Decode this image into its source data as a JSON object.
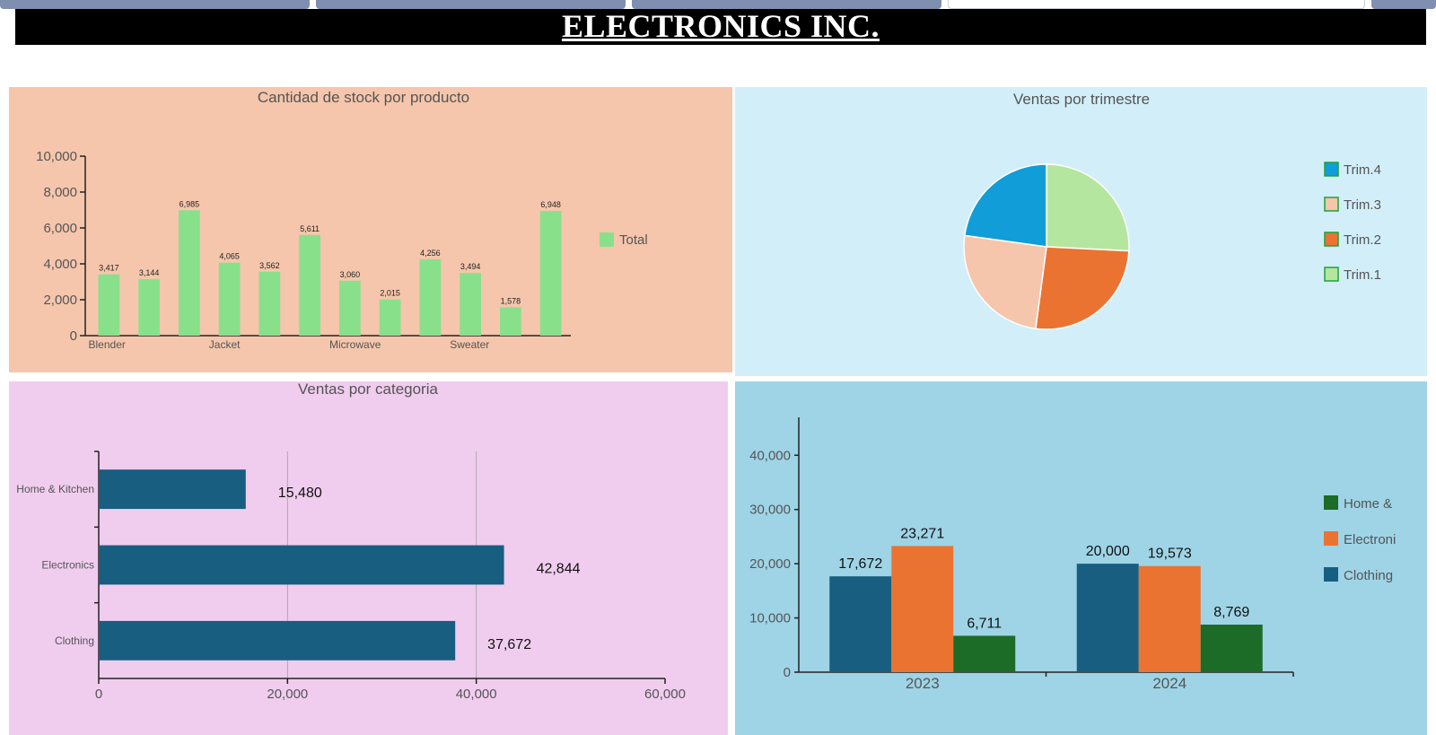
{
  "banner": {
    "title": "ELECTRONICS INC."
  },
  "colors": {
    "panel_stock": "#f5c6ac",
    "panel_quarter": "#d2eef9",
    "panel_category": "#f0cdef",
    "panel_year": "#9ed4e6",
    "bar_green": "#89e08b",
    "navy": "#175e80",
    "orange": "#eb7332",
    "dark_green": "#1c6b26"
  },
  "chart_data": [
    {
      "id": "stock",
      "type": "bar",
      "title": "Cantidad de stock por producto",
      "categories": [
        "Blender",
        "",
        "",
        "Jacket",
        "",
        "",
        "Microwave",
        "",
        "",
        "Sweater",
        "",
        ""
      ],
      "series": [
        {
          "name": "Total",
          "values": [
            3417,
            3144,
            6985,
            4065,
            3562,
            5611,
            3060,
            2015,
            4256,
            3494,
            1578,
            6948
          ]
        }
      ],
      "data_labels": [
        "3,417",
        "3,144",
        "6,985",
        "4,065",
        "3,562",
        "5,611",
        "3,060",
        "2,015",
        "4,256",
        "3,494",
        "1,578",
        "6,948"
      ],
      "yticks": [
        "0",
        "2,000",
        "4,000",
        "6,000",
        "8,000",
        "10,000"
      ],
      "ylim": [
        0,
        10000
      ],
      "legend": "right"
    },
    {
      "id": "quarter",
      "type": "pie",
      "title": "Ventas por trimestre",
      "slices": [
        {
          "name": "Trim.1",
          "value": 25.8,
          "color": "#b5e6a0"
        },
        {
          "name": "Trim.2",
          "value": 26.3,
          "color": "#eb7332"
        },
        {
          "name": "Trim.3",
          "value": 25.1,
          "color": "#f5c6ac"
        },
        {
          "name": "Trim.4",
          "value": 22.8,
          "color": "#119dd8"
        }
      ],
      "legend_order": [
        "Trim.4",
        "Trim.3",
        "Trim.2",
        "Trim.1"
      ],
      "legend": "right"
    },
    {
      "id": "category",
      "type": "bar",
      "orientation": "horizontal",
      "title": "Ventas por categoria",
      "categories": [
        "Home & Kitchen",
        "Electronics",
        "Clothing"
      ],
      "values": [
        15480,
        42844,
        37672
      ],
      "data_labels": [
        "15,480",
        "42,844",
        "37,672"
      ],
      "xticks": [
        "0",
        "20,000",
        "40,000",
        "60,000"
      ],
      "xlim": [
        0,
        60000
      ],
      "grid": true
    },
    {
      "id": "year",
      "type": "bar",
      "categories": [
        "2023",
        "2024"
      ],
      "series": [
        {
          "name": "Clothing",
          "values": [
            17672,
            20000
          ],
          "labels": [
            "17,672",
            "20,000"
          ],
          "color": "#175e80"
        },
        {
          "name": "Electronics",
          "values": [
            23271,
            19573
          ],
          "labels": [
            "23,271",
            "19,573"
          ],
          "color": "#eb7332"
        },
        {
          "name": "Home & Kitchen",
          "values": [
            6711,
            8769
          ],
          "labels": [
            "6,711",
            "8,769"
          ],
          "color": "#1c6b26"
        }
      ],
      "legend_labels": [
        "Home &",
        "Electroni",
        "Clothing"
      ],
      "yticks": [
        "0",
        "10,000",
        "20,000",
        "30,000",
        "40,000"
      ],
      "ylim": [
        0,
        47000
      ],
      "legend": "right"
    }
  ]
}
